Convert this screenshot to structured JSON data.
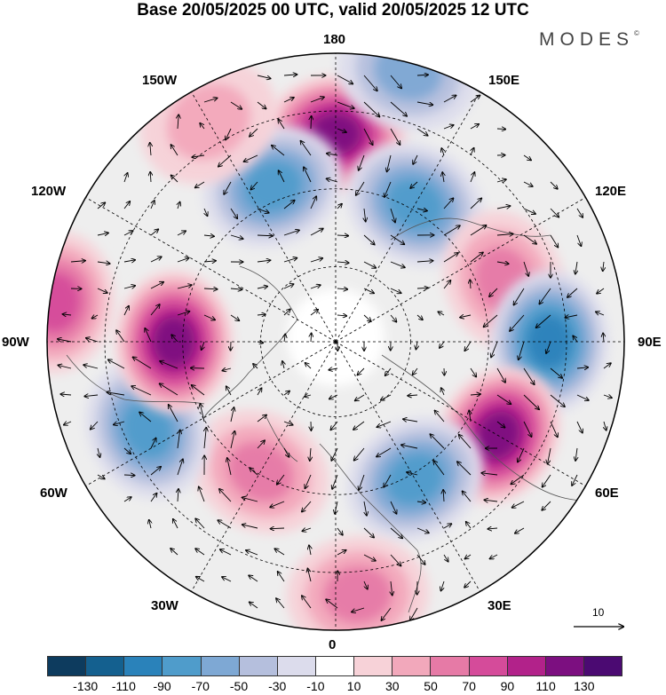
{
  "title": "Base 20/05/2025 00 UTC, valid 20/05/2025 12 UTC",
  "brand": "MODES",
  "brand_mark": "©",
  "longitude_labels": {
    "top": "180",
    "bottom": "0",
    "left": "90W",
    "right": "90E",
    "upper_left_1": "150W",
    "upper_left_2": "120W",
    "lower_left_1": "60W",
    "lower_left_2": "30W",
    "upper_right_1": "150E",
    "upper_right_2": "120E",
    "lower_right_1": "60E",
    "lower_right_2": "30E"
  },
  "vector_scale_label": "10",
  "colorbar": {
    "ticks": [
      "-130",
      "-110",
      "-90",
      "-70",
      "-50",
      "-30",
      "-10",
      "10",
      "30",
      "50",
      "70",
      "90",
      "110",
      "130"
    ],
    "colors": [
      "#0d3b5e",
      "#14608f",
      "#2a82ba",
      "#4f9ccb",
      "#7ea8d4",
      "#b5bfdd",
      "#dcdcec",
      "#ffffff",
      "#f7d2d8",
      "#f2a8bb",
      "#e67aa6",
      "#d54b9a",
      "#b2228a",
      "#7c0f80",
      "#4b0a72"
    ]
  },
  "anomalies": [
    {
      "lon": 180,
      "r": 0.72,
      "value": 95
    },
    {
      "lon": 150,
      "r": 0.55,
      "value": -70
    },
    {
      "lon": 110,
      "r": 0.62,
      "value": 45
    },
    {
      "lon": 90,
      "r": 0.74,
      "value": -80
    },
    {
      "lon": 60,
      "r": 0.65,
      "value": 100
    },
    {
      "lon": 30,
      "r": 0.55,
      "value": -55
    },
    {
      "lon": 5,
      "r": 0.88,
      "value": 35
    },
    {
      "lon": -30,
      "r": 0.52,
      "value": 40
    },
    {
      "lon": -65,
      "r": 0.72,
      "value": -70
    },
    {
      "lon": -90,
      "r": 0.56,
      "value": 95
    },
    {
      "lon": -98,
      "r": 0.98,
      "value": 70
    },
    {
      "lon": -158,
      "r": 0.58,
      "value": -55
    },
    {
      "lon": -150,
      "r": 0.88,
      "value": 30
    },
    {
      "lon": 165,
      "r": 0.97,
      "value": -40
    }
  ]
}
